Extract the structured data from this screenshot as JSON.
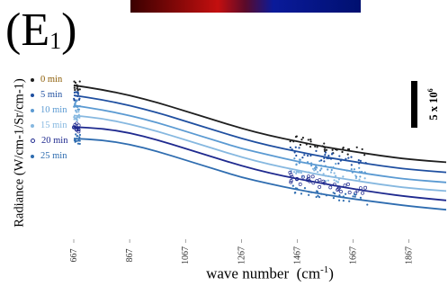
{
  "panel": {
    "label": "(E",
    "subscript": "1",
    "close": ")"
  },
  "chart_data": {
    "type": "line",
    "title": "",
    "xlabel": "wave number",
    "xlabel_unit_base": "(cm",
    "xlabel_unit_sup": "-1",
    "xlabel_unit_close": ")",
    "ylabel": "Radiance  (W/cm-1/Sr/cm-1)",
    "xlim": [
      667,
      2000
    ],
    "x_ticks": [
      667,
      867,
      1067,
      1267,
      1467,
      1667,
      1867
    ],
    "ylim": [
      0,
      100
    ],
    "y_tick_labels_shown": false,
    "grid": false,
    "legend_position": "left",
    "scale_bar": {
      "label_base": "5 x 10",
      "label_sup": "6"
    },
    "x": [
      667,
      767,
      867,
      967,
      1067,
      1167,
      1267,
      1367,
      1467,
      1567,
      1667,
      1767,
      1867,
      2000
    ],
    "series": [
      {
        "name": "0 min",
        "color": "#1f1f1f",
        "marker": "dot",
        "values": [
          92,
          89,
          85,
          80,
          74,
          68,
          62,
          57,
          53,
          49,
          46,
          43,
          40.5,
          38.5
        ]
      },
      {
        "name": "5 min",
        "color": "#1f4fa0",
        "marker": "dot",
        "values": [
          85,
          82,
          78,
          73,
          67,
          61,
          55,
          50,
          46,
          42,
          39,
          36,
          33.5,
          31.5
        ]
      },
      {
        "name": "10 min",
        "color": "#5b9ad2",
        "marker": "dot",
        "values": [
          78,
          75,
          71,
          66,
          60,
          54,
          48,
          43.5,
          39,
          35.5,
          32,
          29,
          26.5,
          24.5
        ]
      },
      {
        "name": "15 min",
        "color": "#86b8e0",
        "marker": "dot",
        "values": [
          71,
          69,
          65,
          60,
          54,
          48,
          42,
          37,
          33,
          29,
          26,
          23,
          20.5,
          18.5
        ]
      },
      {
        "name": "20 min",
        "color": "#1f2a8f",
        "marker": "open",
        "values": [
          63,
          62,
          59,
          54,
          48,
          42,
          36,
          31,
          27,
          23.5,
          20,
          17,
          14.5,
          12
        ]
      },
      {
        "name": "25 min",
        "color": "#2f6db0",
        "marker": "dot",
        "values": [
          55,
          54,
          51,
          46,
          40,
          34,
          28,
          23.5,
          19.5,
          16,
          13,
          10.5,
          8,
          5.5
        ]
      }
    ]
  }
}
